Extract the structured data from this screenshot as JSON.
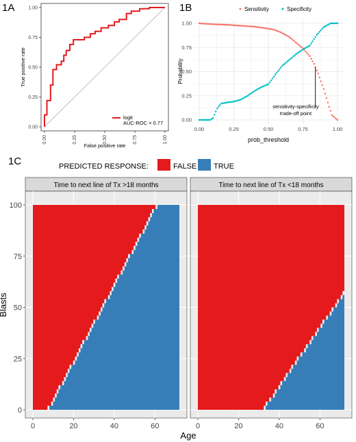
{
  "panel_labels": {
    "a": "1A",
    "b": "1B",
    "c": "1C"
  },
  "colors": {
    "roc_line": "#e41a1c",
    "sensitivity": "#f8766d",
    "specificity": "#00bfc4",
    "false": "#e41a1c",
    "true": "#377eb8",
    "strip_bg": "#d9d9d9",
    "panel_bg": "#ebebeb",
    "grid": "#ffffff"
  },
  "chart_data": [
    {
      "id": "roc",
      "type": "line",
      "xlabel": "False positive rate",
      "ylabel": "True positive rate",
      "xlim": [
        0,
        1
      ],
      "ylim": [
        0,
        1
      ],
      "xticks": [
        "0.00",
        "0.25",
        "0.50",
        "0.75",
        "1.00"
      ],
      "yticks": [
        "0.00",
        "0.25",
        "0.50",
        "0.75",
        "1.00"
      ],
      "legend_label": "logit",
      "annotation": "AUC-ROC = 0.77",
      "series": [
        {
          "x": [
            0,
            0,
            0.02,
            0.02,
            0.05,
            0.05,
            0.07,
            0.07,
            0.1,
            0.1,
            0.14,
            0.14,
            0.16,
            0.16,
            0.18,
            0.18,
            0.21,
            0.21,
            0.24,
            0.24,
            0.27,
            0.27,
            0.33,
            0.33,
            0.38,
            0.38,
            0.42,
            0.42,
            0.47,
            0.47,
            0.53,
            0.53,
            0.58,
            0.58,
            0.62,
            0.62,
            0.68,
            0.68,
            0.72,
            0.72,
            0.79,
            0.79,
            0.87,
            0.87,
            1.0
          ],
          "y": [
            0,
            0.1,
            0.1,
            0.22,
            0.22,
            0.35,
            0.35,
            0.48,
            0.48,
            0.52,
            0.52,
            0.55,
            0.55,
            0.6,
            0.6,
            0.64,
            0.64,
            0.69,
            0.69,
            0.73,
            0.73,
            0.73,
            0.73,
            0.75,
            0.75,
            0.78,
            0.78,
            0.8,
            0.8,
            0.83,
            0.83,
            0.85,
            0.85,
            0.88,
            0.88,
            0.9,
            0.9,
            0.95,
            0.95,
            0.97,
            0.97,
            0.99,
            0.99,
            1.0,
            1.0
          ]
        }
      ]
    },
    {
      "id": "threshold",
      "type": "scatter",
      "xlabel": "prob_threshold",
      "ylabel": "Probability",
      "xlim": [
        0,
        1
      ],
      "ylim": [
        0,
        1
      ],
      "xticks": [
        "0.00",
        "0.25",
        "0.50",
        "0.75",
        "1.00"
      ],
      "yticks": [
        "0.00",
        "0.25",
        "0.50",
        "0.75",
        "1.00"
      ],
      "legend_placement": "top",
      "annotation": [
        "sensitivity-specificity",
        "trade-off point"
      ],
      "tradeoff_threshold": 0.84,
      "series": [
        {
          "name": "Sensitivity",
          "x": [
            0,
            0.1,
            0.2,
            0.3,
            0.4,
            0.5,
            0.55,
            0.6,
            0.65,
            0.7,
            0.75,
            0.8,
            0.83,
            0.86,
            0.9,
            0.93,
            0.96,
            1.0
          ],
          "y": [
            1.0,
            0.99,
            0.985,
            0.975,
            0.965,
            0.945,
            0.93,
            0.9,
            0.86,
            0.8,
            0.74,
            0.66,
            0.58,
            0.48,
            0.32,
            0.18,
            0.05,
            0.0
          ]
        },
        {
          "name": "Specificity",
          "x": [
            0,
            0.08,
            0.1,
            0.13,
            0.16,
            0.2,
            0.25,
            0.3,
            0.35,
            0.4,
            0.45,
            0.5,
            0.55,
            0.6,
            0.65,
            0.7,
            0.75,
            0.8,
            0.85,
            0.9,
            0.95,
            1.0
          ],
          "y": [
            0.0,
            0.0,
            0.02,
            0.12,
            0.17,
            0.18,
            0.19,
            0.21,
            0.25,
            0.3,
            0.34,
            0.37,
            0.47,
            0.56,
            0.62,
            0.68,
            0.73,
            0.77,
            0.88,
            0.96,
            1.0,
            1.0
          ]
        }
      ]
    },
    {
      "id": "heatmap",
      "type": "heatmap",
      "legend_title": "PREDICTED RESPONSE:",
      "legend": [
        "FALSE",
        "TRUE"
      ],
      "xlabel": "Age",
      "ylabel": "Blasts",
      "xlim": [
        0,
        72
      ],
      "ylim": [
        0,
        100
      ],
      "xticks": [
        0,
        20,
        40,
        60
      ],
      "yticks": [
        0,
        25,
        50,
        75,
        100
      ],
      "facets": [
        {
          "label": "Time to next line of Tx >18 months",
          "boundary": {
            "age_at_blasts_0": 7.5,
            "age_at_blasts_100": 61
          }
        },
        {
          "label": "Time to next line of Tx <18 months",
          "boundary": {
            "age_at_blasts_0": 32,
            "age_at_blasts_100": 102
          }
        }
      ]
    }
  ]
}
